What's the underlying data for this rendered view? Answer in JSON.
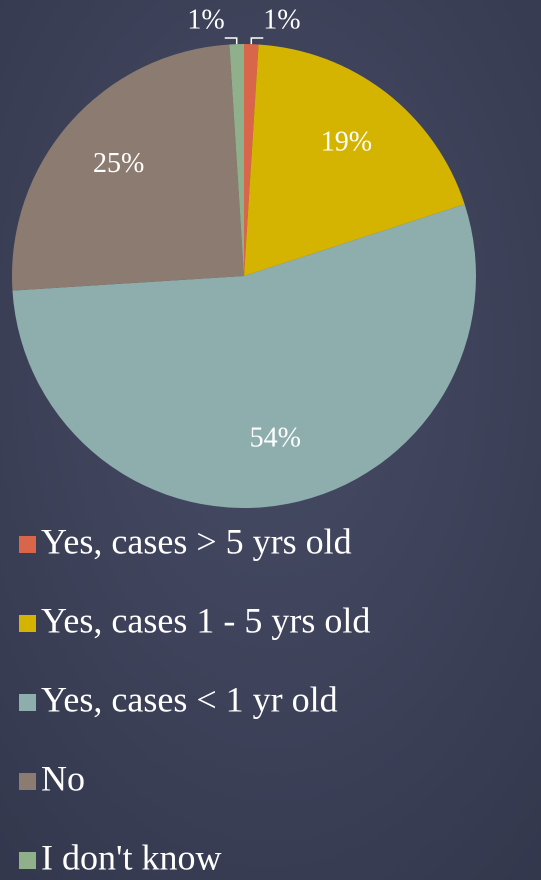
{
  "chart_data": {
    "type": "pie",
    "categories": [
      "Yes, cases > 5 yrs old",
      "Yes, cases 1 - 5 yrs old",
      "Yes, cases < 1 yr old",
      "No",
      "I don't know"
    ],
    "values": [
      1,
      19,
      54,
      25,
      1
    ],
    "value_labels": [
      "1%",
      "19%",
      "54%",
      "25%",
      "1%"
    ],
    "colors": [
      "#d9654a",
      "#d4b400",
      "#8eaeae",
      "#8c7b70",
      "#8fb08a"
    ],
    "legend": "bottom"
  }
}
